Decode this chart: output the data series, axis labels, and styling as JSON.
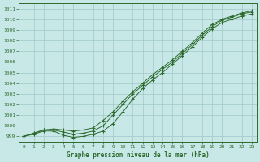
{
  "x": [
    0,
    1,
    2,
    3,
    4,
    5,
    6,
    7,
    8,
    9,
    10,
    11,
    12,
    13,
    14,
    15,
    16,
    17,
    18,
    19,
    20,
    21,
    22,
    23
  ],
  "line1": [
    999.0,
    999.3,
    999.6,
    999.7,
    999.6,
    999.5,
    999.6,
    999.8,
    1000.5,
    1001.3,
    1002.3,
    1003.2,
    1004.0,
    1004.8,
    1005.5,
    1006.2,
    1007.0,
    1007.8,
    1008.7,
    1009.5,
    1010.0,
    1010.3,
    1010.6,
    1010.8
  ],
  "line2": [
    999.0,
    999.3,
    999.6,
    999.6,
    999.4,
    999.2,
    999.3,
    999.5,
    1000.0,
    1001.0,
    1002.0,
    1003.0,
    1003.8,
    1004.6,
    1005.3,
    1006.0,
    1006.8,
    1007.6,
    1008.5,
    1009.3,
    1009.9,
    1010.2,
    1010.5,
    1010.7
  ],
  "line3": [
    999.0,
    999.2,
    999.5,
    999.5,
    999.1,
    998.9,
    999.0,
    999.2,
    999.5,
    1000.2,
    1001.3,
    1002.5,
    1003.5,
    1004.3,
    1005.0,
    1005.8,
    1006.6,
    1007.4,
    1008.3,
    1009.1,
    1009.7,
    1010.0,
    1010.3,
    1010.5
  ],
  "ylim": [
    998.5,
    1011.5
  ],
  "xlim": [
    -0.5,
    23.5
  ],
  "xlabel": "Graphe pression niveau de la mer (hPa)",
  "line_color": "#2d6a2d",
  "bg_color": "#c8e8e8",
  "grid_color": "#a0c8c8",
  "yticks": [
    999,
    1000,
    1001,
    1002,
    1003,
    1004,
    1005,
    1006,
    1007,
    1008,
    1009,
    1010,
    1011
  ],
  "xticks": [
    0,
    1,
    2,
    3,
    4,
    5,
    6,
    7,
    8,
    9,
    10,
    11,
    12,
    13,
    14,
    15,
    16,
    17,
    18,
    19,
    20,
    21,
    22,
    23
  ]
}
